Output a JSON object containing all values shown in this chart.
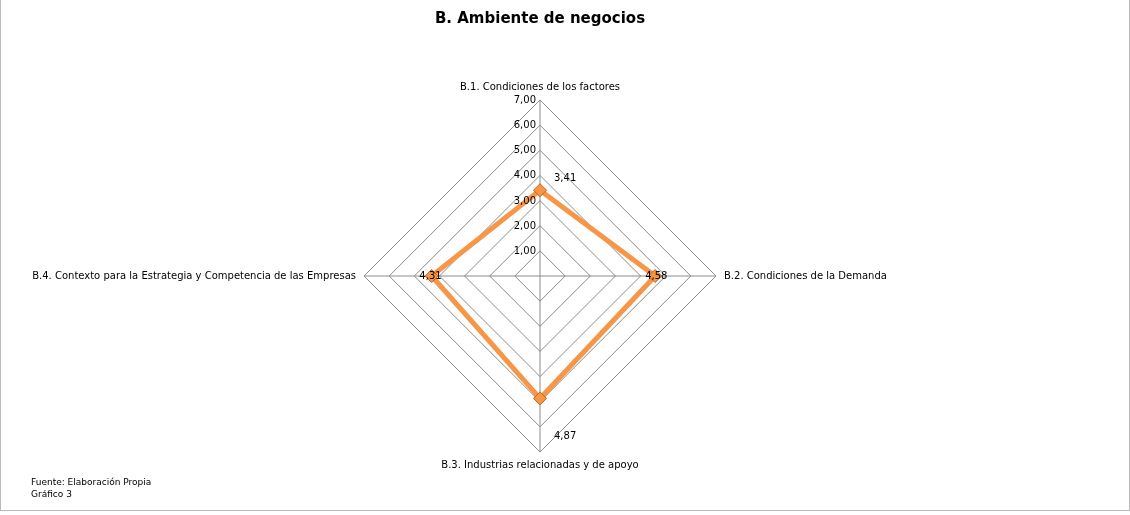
{
  "chart_data": {
    "type": "radar",
    "title": "B. Ambiente de negocios",
    "categories": [
      "B.1. Condiciones de los factores",
      "B.2. Condiciones de la Demanda",
      "B.3. Industrias relacionadas y de apoyo",
      "B.4. Contexto para la Estrategia y Competencia de las Empresas"
    ],
    "series": [
      {
        "color": "#f79646",
        "values": [
          3.41,
          4.58,
          4.87,
          4.31
        ]
      }
    ],
    "value_labels": [
      "3,41",
      "4,58",
      "4,87",
      "4,31"
    ],
    "ylim": [
      0,
      7
    ],
    "yticks": [
      {
        "value": 1,
        "label": "1,00"
      },
      {
        "value": 2,
        "label": "2,00"
      },
      {
        "value": 3,
        "label": "3,00"
      },
      {
        "value": 4,
        "label": "4,00"
      },
      {
        "value": 5,
        "label": "5,00"
      },
      {
        "value": 6,
        "label": "6,00"
      },
      {
        "value": 7,
        "label": "7,00"
      }
    ],
    "grid": true,
    "marker": "diamond",
    "annotations": [
      "Fuente: Elaboración Propia",
      "Gráfico 3"
    ]
  }
}
